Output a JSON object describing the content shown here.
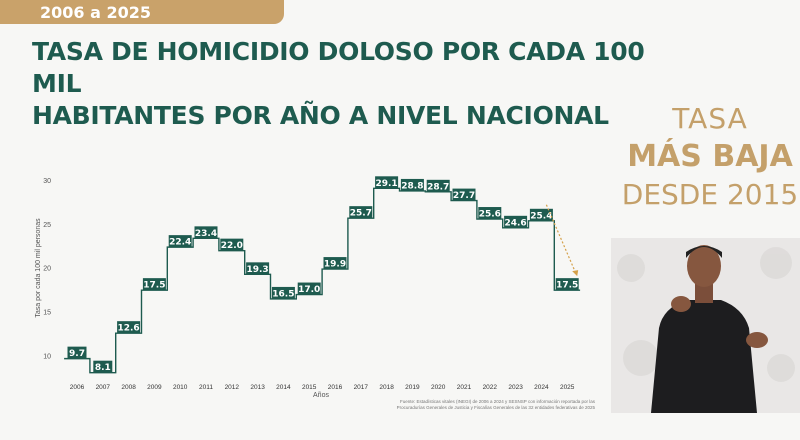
{
  "header": {
    "tab_label": "2006 a 2025"
  },
  "title": {
    "line1": "TASA DE HOMICIDIO DOLOSO POR CADA 100 MIL",
    "line2": "HABITANTES POR AÑO A NIVEL NACIONAL"
  },
  "callout": {
    "line1": "TASA",
    "line2": "MÁS BAJA",
    "line3": "DESDE 2015"
  },
  "colors": {
    "primary": "#1e5b4f",
    "gold": "#c4a06a",
    "tab": "#c9a26a",
    "arrow": "#d4a049"
  },
  "footnote": {
    "line1": "Fuente: Estadísticas vitales (INEGI) de 2006 a 2024 y SESNSP con información reportada por las",
    "line2": "Procuradurías Generales de Justicia y Fiscalías Generales de las 32 entidades federativas de 2025"
  },
  "chart_data": {
    "type": "line",
    "step": true,
    "categories": [
      "2006",
      "2007",
      "2008",
      "2009",
      "2010",
      "2011",
      "2012",
      "2013",
      "2014",
      "2015",
      "2016",
      "2017",
      "2018",
      "2019",
      "2020",
      "2021",
      "2022",
      "2023",
      "2024",
      "2025"
    ],
    "values": [
      9.7,
      8.1,
      12.6,
      17.5,
      22.4,
      23.4,
      22.0,
      19.3,
      16.5,
      17.0,
      19.9,
      25.7,
      29.1,
      28.8,
      28.7,
      27.7,
      25.6,
      24.6,
      25.4,
      17.5
    ],
    "labels": [
      "9.7",
      "8.1",
      "12.6",
      "17.5",
      "22.4",
      "23.4",
      "22.0",
      "19.3",
      "16.5",
      "17.0",
      "19.9",
      "25.7",
      "29.1",
      "28.8",
      "28.7",
      "27.7",
      "25.6",
      "24.6",
      "25.4",
      "17.5"
    ],
    "xlabel": "Años",
    "ylabel": "Tasa por cada 100 mil personas",
    "yticks": [
      10,
      15,
      20,
      25,
      30
    ],
    "ylim": [
      7,
      31
    ],
    "grid": false
  }
}
